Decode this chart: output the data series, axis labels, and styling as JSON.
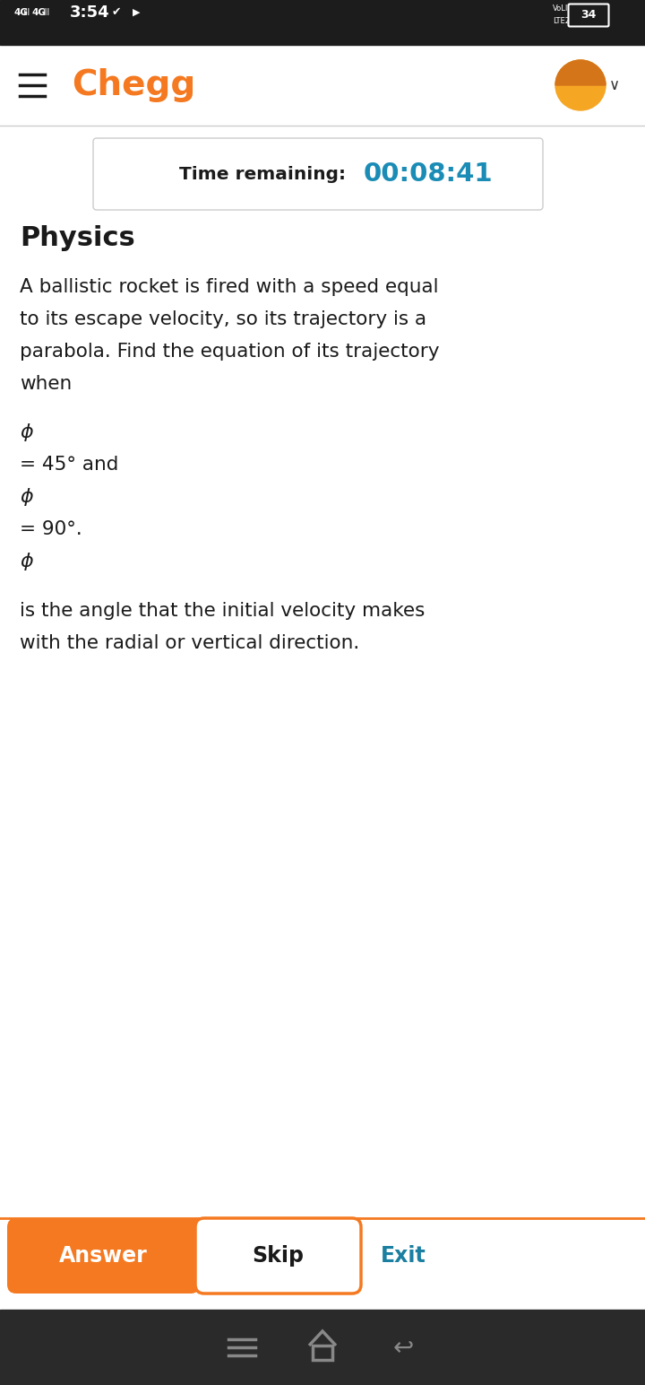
{
  "bg_color": "#ffffff",
  "status_bar_bg": "#1c1c1c",
  "chegg_color": "#f47920",
  "chegg_text": "Chegg",
  "timer_text_label": "Time remaining: ",
  "timer_text_value": "00:08:41",
  "timer_color": "#1a8cb5",
  "timer_border": "#cccccc",
  "subject": "Physics",
  "question_lines": [
    "A ballistic rocket is fired with a speed equal",
    "to its escape velocity, so its trajectory is a",
    "parabola. Find the equation of its trajectory",
    "when"
  ],
  "phi_symbol": "ϕ",
  "line1": "= 45° and",
  "line2": "= 90°.",
  "description_lines": [
    "is the angle that the initial velocity makes",
    "with the radial or vertical direction."
  ],
  "answer_btn_text": "Answer",
  "answer_btn_bg": "#f47920",
  "answer_btn_text_color": "#ffffff",
  "skip_btn_text": "Skip",
  "skip_btn_border": "#f47920",
  "skip_btn_text_color": "#1a1a1a",
  "exit_btn_text": "Exit",
  "exit_btn_text_color": "#1a7fa0",
  "separator_color": "#cccccc",
  "bottom_bar_bg": "#2a2a2a",
  "nav_icon_color": "#888888",
  "text_color": "#1a1a1a",
  "orange_separator": "#f47920"
}
